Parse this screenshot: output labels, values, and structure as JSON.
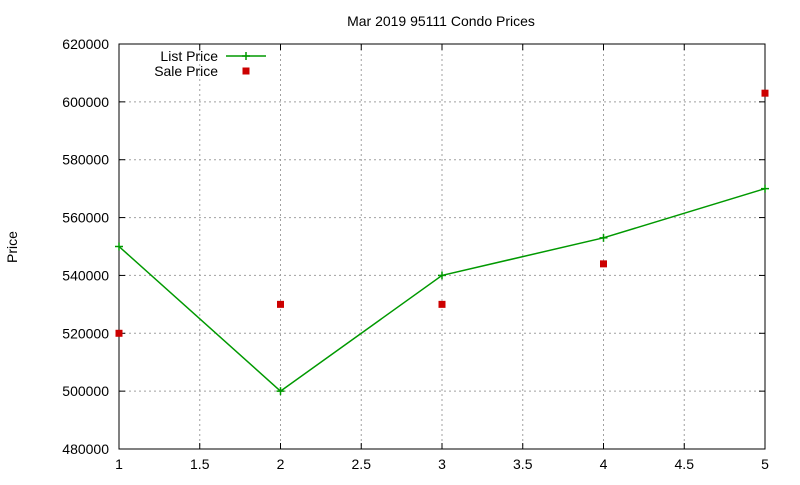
{
  "chart_data": {
    "type": "line",
    "title": "Mar 2019 95111 Condo Prices",
    "xlabel": "",
    "ylabel": "Price",
    "xlim": [
      1,
      5
    ],
    "ylim": [
      480000,
      620000
    ],
    "x_ticks": [
      "1",
      "1.5",
      "2",
      "2.5",
      "3",
      "3.5",
      "4",
      "4.5",
      "5"
    ],
    "x_tick_values": [
      1,
      1.5,
      2,
      2.5,
      3,
      3.5,
      4,
      4.5,
      5
    ],
    "y_ticks": [
      "480000",
      "500000",
      "520000",
      "540000",
      "560000",
      "580000",
      "600000",
      "620000"
    ],
    "y_tick_values": [
      480000,
      500000,
      520000,
      540000,
      560000,
      580000,
      600000,
      620000
    ],
    "grid": true,
    "legend_position": "top-left",
    "series": [
      {
        "name": "List Price",
        "style": "line-plus",
        "color": "#009900",
        "x": [
          1,
          2,
          3,
          4,
          5
        ],
        "y": [
          550000,
          500000,
          540000,
          553000,
          570000
        ]
      },
      {
        "name": "Sale Price",
        "style": "square-points",
        "color": "#cc0000",
        "x": [
          1,
          2,
          3,
          4,
          5
        ],
        "y": [
          520000,
          530000,
          530000,
          544000,
          603000
        ]
      }
    ]
  }
}
